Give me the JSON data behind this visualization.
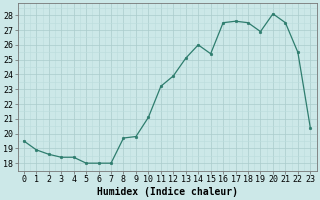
{
  "x": [
    0,
    1,
    2,
    3,
    4,
    5,
    6,
    7,
    8,
    9,
    10,
    11,
    12,
    13,
    14,
    15,
    16,
    17,
    18,
    19,
    20,
    21,
    22,
    23
  ],
  "y": [
    19.5,
    18.9,
    18.6,
    18.4,
    18.4,
    18.0,
    18.0,
    18.0,
    19.7,
    19.8,
    21.1,
    23.2,
    23.9,
    25.1,
    26.0,
    25.4,
    27.5,
    27.6,
    27.5,
    26.9,
    28.1,
    27.5,
    25.5,
    20.4
  ],
  "title": "",
  "xlabel": "Humidex (Indice chaleur)",
  "ylabel": "",
  "xlim": [
    -0.5,
    23.5
  ],
  "ylim": [
    17.5,
    28.8
  ],
  "yticks": [
    18,
    19,
    20,
    21,
    22,
    23,
    24,
    25,
    26,
    27,
    28
  ],
  "xticks": [
    0,
    1,
    2,
    3,
    4,
    5,
    6,
    7,
    8,
    9,
    10,
    11,
    12,
    13,
    14,
    15,
    16,
    17,
    18,
    19,
    20,
    21,
    22,
    23
  ],
  "line_color": "#2e7d6e",
  "marker_color": "#2e7d6e",
  "bg_color": "#cce8e8",
  "grid_major_color": "#aacccc",
  "grid_minor_color": "#bbdddd",
  "xlabel_fontsize": 7,
  "tick_fontsize": 6
}
